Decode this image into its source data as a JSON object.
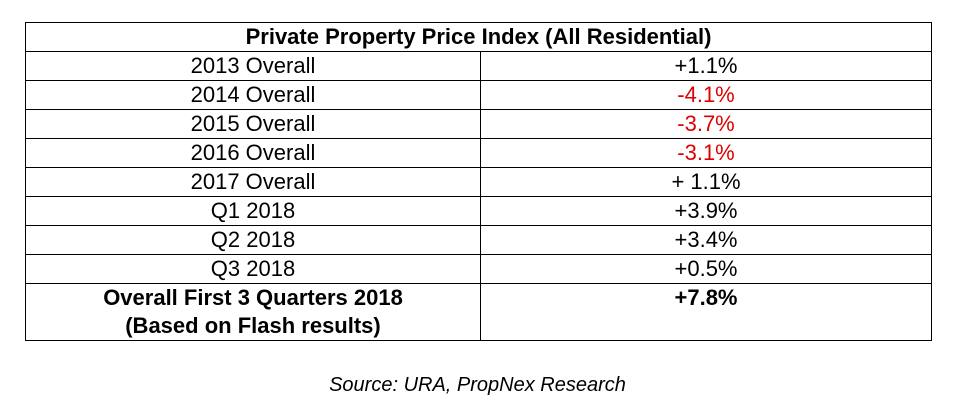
{
  "chart_data": {
    "type": "table",
    "title": "Private Property Price Index (All Residential)",
    "rows": [
      {
        "label": "2013 Overall",
        "value": "+1.1%",
        "color": "#000000"
      },
      {
        "label": "2014 Overall",
        "value": "-4.1%",
        "color": "#e00000"
      },
      {
        "label": "2015 Overall",
        "value": "-3.7%",
        "color": "#e00000"
      },
      {
        "label": "2016 Overall",
        "value": "-3.1%",
        "color": "#e00000"
      },
      {
        "label": "2017 Overall",
        "value": "+ 1.1%",
        "color": "#000000"
      },
      {
        "label": "Q1 2018",
        "value": "+3.9%",
        "color": "#000000"
      },
      {
        "label": "Q2 2018",
        "value": "+3.4%",
        "color": "#000000"
      },
      {
        "label": "Q3 2018",
        "value": "+0.5%",
        "color": "#000000"
      }
    ],
    "total": {
      "label_line1": "Overall First 3 Quarters 2018",
      "label_line2": "(Based on Flash results)",
      "value": "+7.8%"
    }
  },
  "source": "Source: URA, PropNex Research"
}
